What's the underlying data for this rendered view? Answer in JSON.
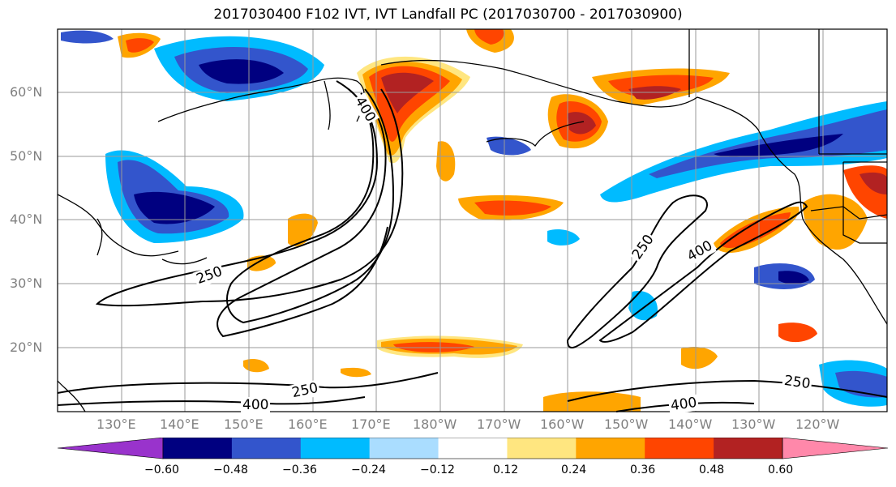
{
  "title": "2017030400 F102 IVT, IVT Landfall PC (2017030700 - 2017030900)",
  "lat_labels": [
    "60°N",
    "50°N",
    "40°N",
    "30°N",
    "20°N"
  ],
  "lon_labels": [
    "130°E",
    "140°E",
    "150°E",
    "160°E",
    "170°E",
    "180°W",
    "170°W",
    "160°W",
    "150°W",
    "140°W",
    "130°W",
    "120°W"
  ],
  "contour_labels": [
    "250",
    "250",
    "250",
    "250",
    "400",
    "400",
    "400",
    "400"
  ],
  "colorbar": {
    "colors": [
      "#9933cc",
      "#000080",
      "#3355cc",
      "#00bbff",
      "#aaddff",
      "#ffffff",
      "#ffe680",
      "#ffa500",
      "#ff4500",
      "#b22222",
      "#ff88aa"
    ],
    "ticks": [
      "−0.60",
      "−0.48",
      "−0.36",
      "−0.24",
      "−0.12",
      "0.12",
      "0.24",
      "0.36",
      "0.48",
      "0.60"
    ]
  },
  "colors": {
    "grid": "#999999",
    "contour": "#000000",
    "coast": "#000000"
  }
}
